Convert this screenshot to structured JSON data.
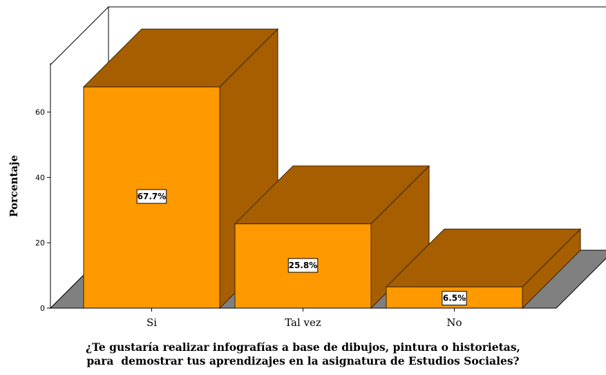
{
  "chart_data": {
    "type": "bar",
    "style": "3d",
    "categories": [
      "Si",
      "Tal vez",
      "No"
    ],
    "values": [
      67.7,
      25.8,
      6.5
    ],
    "data_labels": [
      "67.7%",
      "25.8%",
      "6.5%"
    ],
    "ylabel": "Porcentaje",
    "xlabel_lines": [
      "¿Te gustaría realizar infografías a base de dibujos, pintura o historietas,",
      "para  demostrar tus aprendizajes en la asignatura de Estudios Sociales?"
    ],
    "yticks": [
      0,
      20,
      40,
      60
    ],
    "ylim": [
      0,
      75
    ],
    "grid": false,
    "legend": "none",
    "colors": {
      "bar_front": "#FF9900",
      "bar_top": "#A65E00",
      "bar_side": "#A65E00",
      "floor": "#808080",
      "bar_outline": "#3A2200"
    }
  }
}
